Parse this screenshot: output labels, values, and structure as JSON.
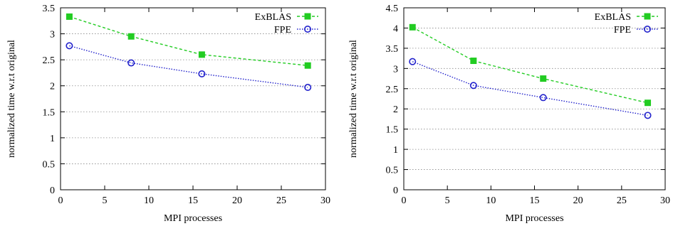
{
  "chart_data": [
    {
      "type": "line",
      "xlabel": "MPI processes",
      "ylabel": "normalized time w.r.t original",
      "xlim": [
        0,
        30
      ],
      "ylim": [
        0,
        3.5
      ],
      "xticks": [
        "0",
        "5",
        "10",
        "15",
        "20",
        "25",
        "30"
      ],
      "yticks": [
        "0",
        "0.5",
        "1",
        "1.5",
        "2",
        "2.5",
        "3",
        "3.5"
      ],
      "grid": "horizontal dotted",
      "legend_position": "top-right",
      "x": [
        1,
        8,
        16,
        28
      ],
      "series": [
        {
          "name": "ExBLAS",
          "values": [
            3.33,
            2.95,
            2.6,
            2.39
          ],
          "color": "#22cc22",
          "marker": "filled-square",
          "line": "dashed"
        },
        {
          "name": "FPE",
          "values": [
            2.77,
            2.44,
            2.23,
            1.97
          ],
          "color": "#2222cc",
          "marker": "open-circle",
          "line": "dotted"
        }
      ]
    },
    {
      "type": "line",
      "xlabel": "MPI processes",
      "ylabel": "normalized time w.r.t original",
      "xlim": [
        0,
        30
      ],
      "ylim": [
        0,
        4.5
      ],
      "xticks": [
        "0",
        "5",
        "10",
        "15",
        "20",
        "25",
        "30"
      ],
      "yticks": [
        "0",
        "0.5",
        "1",
        "1.5",
        "2",
        "2.5",
        "3",
        "3.5",
        "4",
        "4.5"
      ],
      "grid": "horizontal dotted",
      "legend_position": "top-right",
      "x": [
        1,
        8,
        16,
        28
      ],
      "series": [
        {
          "name": "ExBLAS",
          "values": [
            4.02,
            3.19,
            2.75,
            2.15
          ],
          "color": "#22cc22",
          "marker": "filled-square",
          "line": "dashed"
        },
        {
          "name": "FPE",
          "values": [
            3.17,
            2.58,
            2.28,
            1.84
          ],
          "color": "#2222cc",
          "marker": "open-circle",
          "line": "dotted"
        }
      ]
    }
  ]
}
